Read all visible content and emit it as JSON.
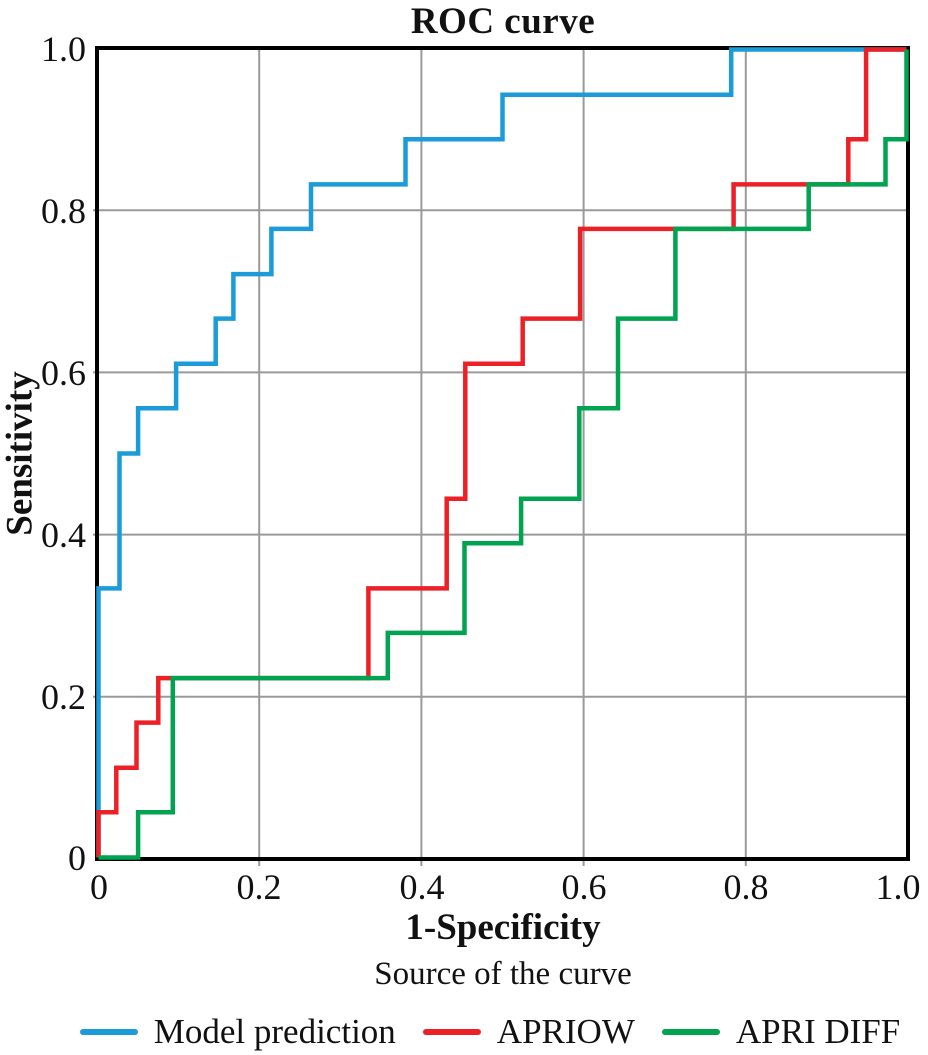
{
  "title": "ROC curve",
  "axes": {
    "x_label": "1-Specificity",
    "y_label": "Sensitivity",
    "x_ticks": [
      "0",
      "0.2",
      "0.4",
      "0.6",
      "0.8",
      "1.0"
    ],
    "y_ticks": [
      "1.0",
      "0.8",
      "0.6",
      "0.4",
      "0.2",
      "0"
    ],
    "tick_values": [
      0,
      0.2,
      0.4,
      0.6,
      0.8,
      1.0
    ]
  },
  "legend": {
    "title": "Source of the curve",
    "items": [
      {
        "label": "Model prediction",
        "color": "#1B9BD8"
      },
      {
        "label": "APRIOW",
        "color": "#EC2127"
      },
      {
        "label": "APRI DIFF",
        "color": "#00A350"
      }
    ]
  },
  "colors": {
    "grid": "#9A9A9A",
    "frame": "#000000",
    "text": "#111111"
  },
  "chart_data": {
    "type": "line",
    "subtype": "roc-step-curves",
    "title": "ROC curve",
    "xlabel": "1-Specificity",
    "ylabel": "Sensitivity",
    "xlim": [
      0,
      1
    ],
    "ylim": [
      0,
      1
    ],
    "grid": true,
    "grid_interval": 0.2,
    "legend_position": "bottom",
    "legend_title": "Source of the curve",
    "series": [
      {
        "name": "Model prediction",
        "color": "#1B9BD8",
        "points": [
          [
            0,
            0
          ],
          [
            0,
            0.333
          ],
          [
            0.026,
            0.333
          ],
          [
            0.026,
            0.5
          ],
          [
            0.049,
            0.5
          ],
          [
            0.049,
            0.556
          ],
          [
            0.096,
            0.556
          ],
          [
            0.096,
            0.611
          ],
          [
            0.145,
            0.611
          ],
          [
            0.145,
            0.667
          ],
          [
            0.167,
            0.667
          ],
          [
            0.167,
            0.722
          ],
          [
            0.214,
            0.722
          ],
          [
            0.214,
            0.778
          ],
          [
            0.263,
            0.778
          ],
          [
            0.263,
            0.833
          ],
          [
            0.38,
            0.833
          ],
          [
            0.38,
            0.889
          ],
          [
            0.5,
            0.889
          ],
          [
            0.5,
            0.944
          ],
          [
            0.783,
            0.944
          ],
          [
            0.783,
            1
          ],
          [
            1,
            1
          ]
        ]
      },
      {
        "name": "APRIOW",
        "color": "#EC2127",
        "points": [
          [
            0,
            0
          ],
          [
            0,
            0.056
          ],
          [
            0.022,
            0.056
          ],
          [
            0.022,
            0.111
          ],
          [
            0.047,
            0.111
          ],
          [
            0.047,
            0.167
          ],
          [
            0.074,
            0.167
          ],
          [
            0.074,
            0.222
          ],
          [
            0.334,
            0.222
          ],
          [
            0.334,
            0.333
          ],
          [
            0.431,
            0.333
          ],
          [
            0.431,
            0.444
          ],
          [
            0.454,
            0.444
          ],
          [
            0.454,
            0.611
          ],
          [
            0.525,
            0.611
          ],
          [
            0.525,
            0.667
          ],
          [
            0.596,
            0.667
          ],
          [
            0.596,
            0.778
          ],
          [
            0.786,
            0.778
          ],
          [
            0.786,
            0.833
          ],
          [
            0.928,
            0.833
          ],
          [
            0.928,
            0.889
          ],
          [
            0.95,
            0.889
          ],
          [
            0.95,
            1
          ],
          [
            1,
            1
          ]
        ]
      },
      {
        "name": "APRI DIFF",
        "color": "#00A350",
        "points": [
          [
            0,
            0
          ],
          [
            0.049,
            0
          ],
          [
            0.049,
            0.056
          ],
          [
            0.092,
            0.056
          ],
          [
            0.092,
            0.222
          ],
          [
            0.358,
            0.222
          ],
          [
            0.358,
            0.278
          ],
          [
            0.453,
            0.278
          ],
          [
            0.453,
            0.389
          ],
          [
            0.523,
            0.389
          ],
          [
            0.523,
            0.444
          ],
          [
            0.595,
            0.444
          ],
          [
            0.595,
            0.556
          ],
          [
            0.643,
            0.556
          ],
          [
            0.643,
            0.667
          ],
          [
            0.714,
            0.667
          ],
          [
            0.714,
            0.778
          ],
          [
            0.879,
            0.778
          ],
          [
            0.879,
            0.833
          ],
          [
            0.974,
            0.833
          ],
          [
            0.974,
            0.889
          ],
          [
            1,
            0.889
          ],
          [
            1,
            1
          ]
        ]
      }
    ]
  }
}
